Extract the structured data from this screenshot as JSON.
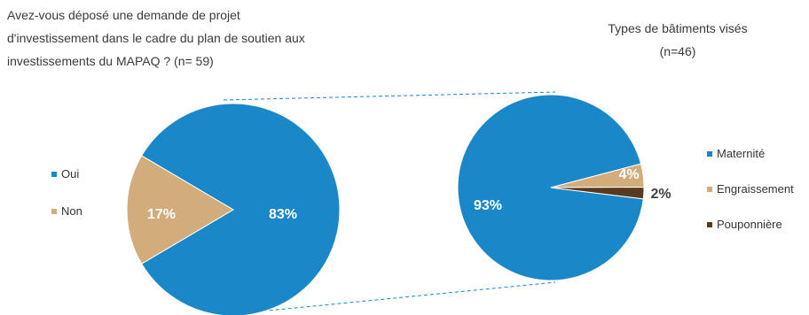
{
  "chart_data": [
    {
      "type": "pie",
      "title_lines": [
        "Avez-vous déposé une demande de projet",
        "d'investissement dans le cadre du plan de soutien aux",
        "investissements du MAPAQ ? (n= 59)"
      ],
      "categories": [
        "Oui",
        "Non"
      ],
      "values": [
        83,
        17
      ],
      "labels": [
        "83%",
        "17%"
      ],
      "colors": [
        "#1a87c8",
        "#d2ac7a"
      ],
      "legend_position": "left",
      "label_colors": [
        "#ffffff",
        "#ffffff"
      ]
    },
    {
      "type": "pie",
      "title_lines": [
        "Types de bâtiments visés",
        "(n=46)"
      ],
      "categories": [
        "Maternité",
        "Engraissement",
        "Pouponnière"
      ],
      "values": [
        93,
        4,
        2
      ],
      "labels": [
        "93%",
        "4%",
        "2%"
      ],
      "colors": [
        "#1a87c8",
        "#d2ac7a",
        "#5a3a1e"
      ],
      "legend_position": "right",
      "label_colors": [
        "#ffffff",
        "#ffffff",
        "#404040"
      ]
    }
  ]
}
